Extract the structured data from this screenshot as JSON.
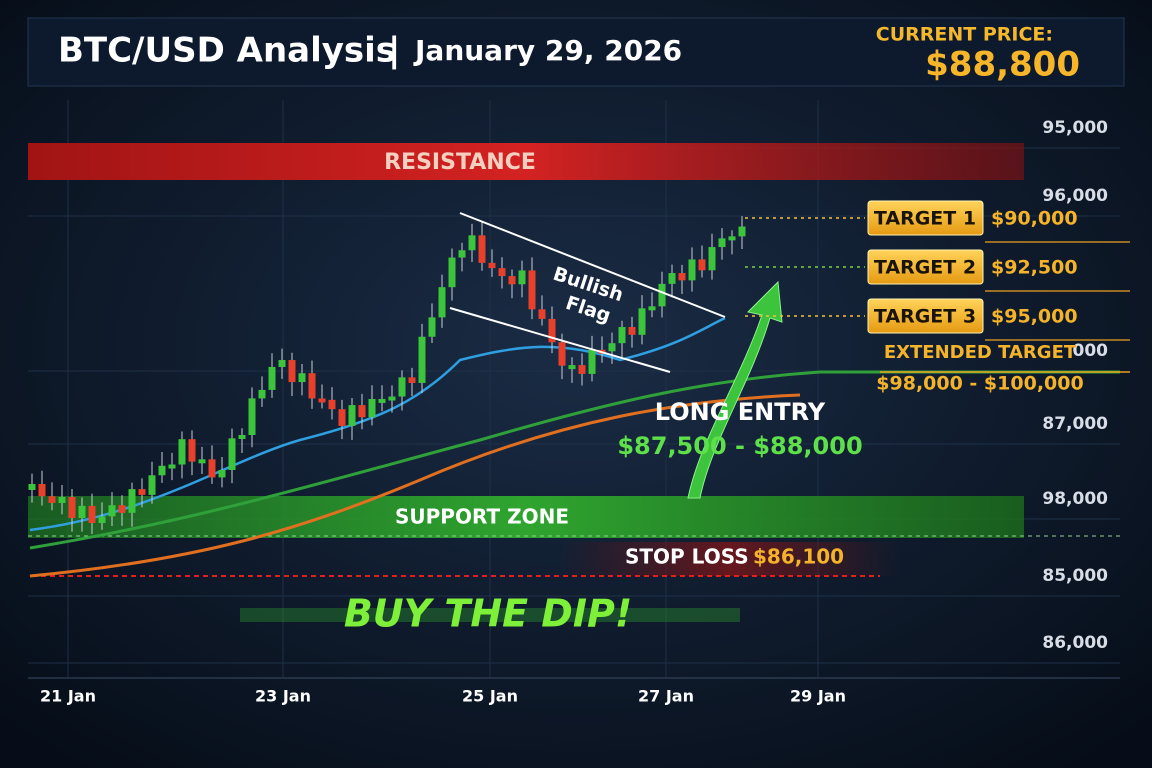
{
  "header": {
    "title": "BTC/USD Analysis",
    "separator": "|",
    "date": "January 29, 2026",
    "current_price_label": "CURRENT PRICE:",
    "current_price": "$88,800"
  },
  "zones": {
    "resistance": "RESISTANCE",
    "support": "SUPPORT ZONE",
    "stop_loss_label": "STOP LOSS",
    "stop_loss_value": "$86,100"
  },
  "targets": [
    {
      "label": "TARGET 1",
      "value": "$90,000"
    },
    {
      "label": "TARGET 2",
      "value": "$92,500"
    },
    {
      "label": "TARGET 3",
      "value": "$95,000"
    }
  ],
  "extended_target": {
    "label": "EXTENDED TARGET",
    "value": "$98,000 - $100,000"
  },
  "long_entry": {
    "label": "LONG ENTRY",
    "value": "$87,500 - $88,000"
  },
  "pattern": {
    "line1": "Bullish",
    "line2": "Flag"
  },
  "slogan": "BUY THE DIP!",
  "y_axis_labels": [
    "95,000",
    "96,000",
    "000",
    "87,000",
    "98,000",
    "85,000",
    "86,000"
  ],
  "x_axis_labels": [
    "21 Jan",
    "23 Jan",
    "25 Jan",
    "27 Jan",
    "29 Jan"
  ]
}
